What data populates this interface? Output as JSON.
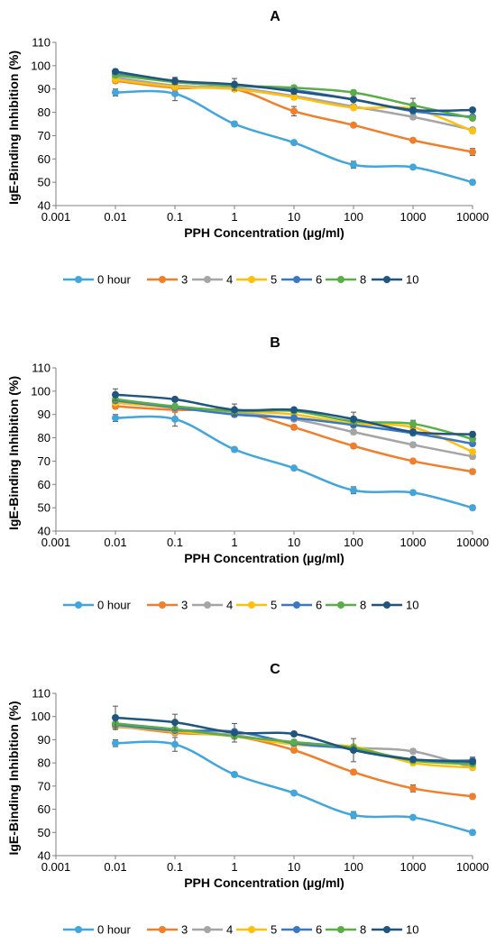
{
  "chart_data": [
    {
      "type": "line",
      "panel_label": "A",
      "title": "",
      "xlabel": "PPH Concentration (µg/ml)",
      "ylabel": "IgE-Binding Inhibition (%)",
      "x_scale": "log",
      "xlim": [
        0.001,
        10000
      ],
      "ylim": [
        40,
        110
      ],
      "x_ticks": [
        "0.001",
        "0.01",
        "0.1",
        "1",
        "10",
        "100",
        "1000",
        "10000"
      ],
      "y_ticks": [
        "40",
        "50",
        "60",
        "70",
        "80",
        "90",
        "100",
        "110"
      ],
      "grid": false,
      "legend_position": "bottom",
      "x": [
        0.01,
        0.1,
        1,
        10,
        100,
        1000,
        10000
      ],
      "series": [
        {
          "name": "0 hour",
          "color": "#41a6dc",
          "values": [
            88.5,
            88,
            75,
            67,
            57.5,
            56.5,
            50
          ],
          "errors": [
            1.5,
            3,
            1,
            0.5,
            1.5,
            0.5,
            1
          ]
        },
        {
          "name": "3",
          "color": "#f07f2b",
          "values": [
            93.5,
            90.5,
            90,
            80.5,
            74.5,
            68,
            63
          ],
          "errors": [
            1,
            1,
            1,
            2,
            0.5,
            0.5,
            1.5
          ]
        },
        {
          "name": "4",
          "color": "#a5a5a5",
          "values": [
            95,
            91.5,
            90.5,
            87,
            82.5,
            78,
            72.5
          ],
          "errors": [
            1,
            1,
            1,
            1,
            1,
            1,
            1
          ]
        },
        {
          "name": "5",
          "color": "#fec00f",
          "values": [
            94,
            91,
            90,
            86.5,
            82,
            81.5,
            72
          ],
          "errors": [
            1,
            1,
            1,
            1,
            1,
            1,
            1
          ]
        },
        {
          "name": "6",
          "color": "#3a78c3",
          "values": [
            96.5,
            93,
            91.5,
            89.5,
            85.5,
            80.5,
            78
          ],
          "errors": [
            1,
            1,
            1,
            1,
            1,
            1,
            1
          ]
        },
        {
          "name": "8",
          "color": "#5aae47",
          "values": [
            96,
            93,
            91.5,
            90.5,
            88.5,
            83,
            77.5
          ],
          "errors": [
            1,
            1,
            1,
            1,
            1,
            3,
            1
          ]
        },
        {
          "name": "10",
          "color": "#1f557f",
          "values": [
            97.5,
            93.5,
            92,
            89,
            85.5,
            81,
            81
          ],
          "errors": [
            1,
            1.5,
            2.5,
            1,
            1,
            1,
            1
          ]
        }
      ]
    },
    {
      "type": "line",
      "panel_label": "B",
      "title": "",
      "xlabel": "PPH Concentration (µg/ml)",
      "ylabel": "IgE-Binding Inhibition (%)",
      "x_scale": "log",
      "xlim": [
        0.001,
        10000
      ],
      "ylim": [
        40,
        110
      ],
      "x_ticks": [
        "0.001",
        "0.01",
        "0.1",
        "1",
        "10",
        "100",
        "1000",
        "10000"
      ],
      "y_ticks": [
        "40",
        "50",
        "60",
        "70",
        "80",
        "90",
        "100",
        "110"
      ],
      "grid": false,
      "legend_position": "bottom",
      "x": [
        0.01,
        0.1,
        1,
        10,
        100,
        1000,
        10000
      ],
      "series": [
        {
          "name": "0 hour",
          "color": "#41a6dc",
          "values": [
            88.5,
            88,
            75,
            67,
            57.5,
            56.5,
            50
          ],
          "errors": [
            1.5,
            3,
            1,
            0.5,
            1.5,
            0.5,
            1
          ]
        },
        {
          "name": "3",
          "color": "#f07f2b",
          "values": [
            93.5,
            92,
            91.5,
            84.5,
            76.5,
            70,
            65.5
          ],
          "errors": [
            1,
            1,
            1,
            1,
            1,
            0.5,
            1
          ]
        },
        {
          "name": "4",
          "color": "#a5a5a5",
          "values": [
            95,
            93,
            91,
            88,
            82.5,
            77,
            72
          ],
          "errors": [
            1,
            1,
            1,
            1,
            1,
            1,
            1
          ]
        },
        {
          "name": "5",
          "color": "#fec00f",
          "values": [
            95,
            93,
            91.5,
            90,
            86,
            84.5,
            74
          ],
          "errors": [
            1,
            1,
            1,
            1,
            1,
            1,
            1
          ]
        },
        {
          "name": "6",
          "color": "#3a78c3",
          "values": [
            96,
            93,
            90,
            88.5,
            85.5,
            82,
            77.5
          ],
          "errors": [
            1,
            1,
            1,
            1,
            1,
            1,
            1
          ]
        },
        {
          "name": "8",
          "color": "#5aae47",
          "values": [
            96.5,
            93.5,
            91.5,
            91.5,
            87,
            86,
            79.5
          ],
          "errors": [
            1,
            1,
            1,
            1,
            2,
            1.5,
            1
          ]
        },
        {
          "name": "10",
          "color": "#1f557f",
          "values": [
            98.5,
            96.5,
            92,
            92,
            88,
            82.5,
            81.5
          ],
          "errors": [
            2.5,
            1,
            2.5,
            1,
            3,
            1,
            1
          ]
        }
      ]
    },
    {
      "type": "line",
      "panel_label": "C",
      "title": "",
      "xlabel": "PPH Concentration (µg/ml)",
      "ylabel": "IgE-Binding Inhibition (%)",
      "x_scale": "log",
      "xlim": [
        0.001,
        10000
      ],
      "ylim": [
        40,
        110
      ],
      "x_ticks": [
        "0.001",
        "0.01",
        "0.1",
        "1",
        "10",
        "100",
        "1000",
        "10000"
      ],
      "y_ticks": [
        "40",
        "50",
        "60",
        "70",
        "80",
        "90",
        "100",
        "110"
      ],
      "grid": false,
      "legend_position": "bottom",
      "x": [
        0.01,
        0.1,
        1,
        10,
        100,
        1000,
        10000
      ],
      "series": [
        {
          "name": "0 hour",
          "color": "#41a6dc",
          "values": [
            88.5,
            88,
            75,
            67,
            57.5,
            56.5,
            50
          ],
          "errors": [
            1.5,
            3,
            1,
            0.5,
            1.5,
            0.5,
            1
          ]
        },
        {
          "name": "3",
          "color": "#f07f2b",
          "values": [
            96,
            93,
            91.5,
            85.5,
            76,
            69,
            65.5
          ],
          "errors": [
            1,
            1,
            1,
            1,
            1,
            1.5,
            1
          ]
        },
        {
          "name": "4",
          "color": "#a5a5a5",
          "values": [
            95.5,
            94,
            92,
            88,
            86.5,
            85,
            78
          ],
          "errors": [
            1,
            1,
            1,
            1,
            1,
            1,
            1
          ]
        },
        {
          "name": "5",
          "color": "#fec00f",
          "values": [
            96,
            93.5,
            91.5,
            88,
            87,
            80,
            78
          ],
          "errors": [
            1,
            1,
            1,
            1,
            1,
            1,
            1
          ]
        },
        {
          "name": "6",
          "color": "#3a78c3",
          "values": [
            96.5,
            94,
            93.5,
            88.5,
            86,
            81.5,
            81
          ],
          "errors": [
            1,
            1,
            1,
            1,
            1,
            1,
            1.5
          ]
        },
        {
          "name": "8",
          "color": "#5aae47",
          "values": [
            97,
            94.5,
            91.5,
            89,
            86.5,
            81,
            79.5
          ],
          "errors": [
            1,
            1,
            1,
            1,
            1,
            1,
            1
          ]
        },
        {
          "name": "10",
          "color": "#1f557f",
          "values": [
            99.5,
            97.5,
            93,
            92.5,
            85.5,
            81.5,
            80.5
          ],
          "errors": [
            5,
            3.5,
            4,
            1,
            5,
            1,
            1
          ]
        }
      ]
    }
  ]
}
